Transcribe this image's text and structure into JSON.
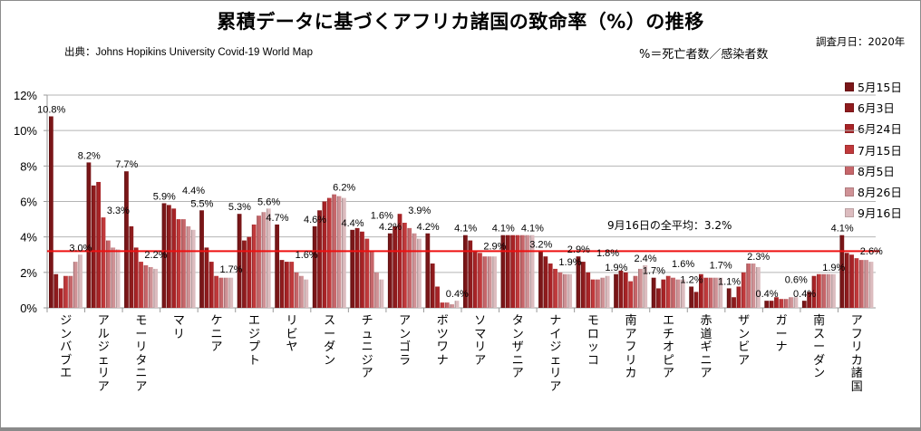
{
  "chart_data": {
    "type": "bar",
    "title": "累積データに基づくアフリカ諸国の致命率（%）の推移",
    "source": "出典：Johns Hopikins University   Covid-19 World Map",
    "formula_note": "%＝死亡者数／感染者数",
    "survey_note": "調査月日：2020年",
    "xlabel": "",
    "ylabel": "",
    "ylim": [
      0,
      12
    ],
    "y_ticks": [
      "0%",
      "2%",
      "4%",
      "6%",
      "8%",
      "10%",
      "12%"
    ],
    "y_tick_values": [
      0,
      2,
      4,
      6,
      8,
      10,
      12
    ],
    "grid": true,
    "legend_position": "right",
    "categories": [
      "ジンバブエ",
      "アルジェリア",
      "モーリタニア",
      "マリ",
      "ケニア",
      "エジプト",
      "リビヤ",
      "スーダン",
      "チュニジア",
      "アンゴラ",
      "ボツワナ",
      "ソマリア",
      "タンザニア",
      "ナイジェリア",
      "モロッコ",
      "南アフリカ",
      "エチオピア",
      "赤道ギニア",
      "ザンビア",
      "ガーナ",
      "南スーダン",
      "アフリカ諸国"
    ],
    "series": [
      {
        "name": "5月15日",
        "color": "#7a1618",
        "values": [
          10.8,
          8.2,
          7.7,
          5.9,
          5.5,
          5.3,
          4.7,
          4.6,
          4.4,
          4.2,
          4.2,
          4.1,
          4.1,
          3.2,
          2.9,
          1.9,
          1.7,
          1.2,
          1.1,
          0.4,
          0.4,
          4.1
        ]
      },
      {
        "name": "6月3日",
        "color": "#8f1b1d",
        "values": [
          1.9,
          6.9,
          4.6,
          5.8,
          3.4,
          3.8,
          2.7,
          5.5,
          4.5,
          4.6,
          2.5,
          3.8,
          4.1,
          2.9,
          2.6,
          2.1,
          1.1,
          0.9,
          0.6,
          0.4,
          0.9,
          3.1
        ]
      },
      {
        "name": "6月24日",
        "color": "#a82326",
        "values": [
          1.1,
          7.1,
          3.4,
          5.6,
          2.6,
          4.0,
          2.6,
          6.0,
          4.3,
          5.3,
          1.2,
          3.2,
          4.1,
          2.5,
          2.0,
          2.0,
          1.6,
          1.9,
          1.2,
          0.6,
          1.8,
          3.0
        ]
      },
      {
        "name": "7月15日",
        "color": "#c0393b",
        "values": [
          1.8,
          5.1,
          2.6,
          5.0,
          1.8,
          4.7,
          2.6,
          6.2,
          3.9,
          4.8,
          0.3,
          3.1,
          4.1,
          2.2,
          1.6,
          1.5,
          1.8,
          1.7,
          2.0,
          0.5,
          1.9,
          2.8
        ]
      },
      {
        "name": "8月5日",
        "color": "#c6666a",
        "values": [
          1.8,
          3.8,
          2.4,
          5.0,
          1.7,
          5.2,
          2.0,
          6.4,
          3.2,
          4.5,
          0.3,
          2.9,
          4.1,
          2.0,
          1.6,
          1.8,
          1.7,
          1.7,
          2.5,
          0.5,
          1.9,
          2.7
        ]
      },
      {
        "name": "8月26日",
        "color": "#cf9296",
        "values": [
          2.6,
          3.4,
          2.3,
          4.6,
          1.7,
          5.4,
          1.8,
          6.3,
          2.0,
          4.2,
          0.2,
          2.9,
          4.1,
          1.9,
          1.7,
          2.2,
          1.6,
          1.7,
          2.5,
          0.6,
          1.9,
          2.7
        ]
      },
      {
        "name": "9月16日",
        "color": "#dcbcbf",
        "values": [
          3.0,
          3.3,
          2.2,
          4.4,
          1.7,
          5.6,
          1.6,
          6.2,
          1.6,
          3.9,
          0.4,
          2.9,
          4.1,
          1.9,
          1.8,
          2.4,
          1.6,
          1.7,
          2.3,
          0.6,
          1.9,
          2.6
        ]
      }
    ],
    "data_labels": [
      {
        "category": "ジンバブエ",
        "labels": [
          "10.8%",
          "3.0%"
        ]
      },
      {
        "category": "アルジェリア",
        "labels": [
          "8.2%",
          "3.3%"
        ]
      },
      {
        "category": "モーリタニア",
        "labels": [
          "7.7%",
          "2.2%"
        ]
      },
      {
        "category": "マリ",
        "labels": [
          "5.9%",
          "4.4%"
        ]
      },
      {
        "category": "ケニア",
        "labels": [
          "5.5%",
          "1.7%"
        ]
      },
      {
        "category": "エジプト",
        "labels": [
          "5.3%",
          "5.6%"
        ]
      },
      {
        "category": "リビヤ",
        "labels": [
          "4.7%",
          "1.6%"
        ]
      },
      {
        "category": "スーダン",
        "labels": [
          "4.6%",
          "6.2%"
        ]
      },
      {
        "category": "チュニジア",
        "labels": [
          "4.4%",
          "1.6%"
        ]
      },
      {
        "category": "アンゴラ",
        "labels": [
          "4.2%",
          "3.9%"
        ]
      },
      {
        "category": "ボツワナ",
        "labels": [
          "4.2%",
          "0.4%"
        ]
      },
      {
        "category": "ソマリア",
        "labels": [
          "4.1%",
          "2.9%"
        ]
      },
      {
        "category": "タンザニア",
        "labels": [
          "4.1%",
          "4.1%"
        ]
      },
      {
        "category": "ナイジェリア",
        "labels": [
          "3.2%",
          "1.9%"
        ]
      },
      {
        "category": "モロッコ",
        "labels": [
          "2.9%",
          "1.8%"
        ]
      },
      {
        "category": "南アフリカ",
        "labels": [
          "1.9%",
          "2.4%"
        ]
      },
      {
        "category": "エチオピア",
        "labels": [
          "1.7%",
          "1.6%"
        ]
      },
      {
        "category": "赤道ギニア",
        "labels": [
          "1.2%",
          "1.7%"
        ]
      },
      {
        "category": "ザンビア",
        "labels": [
          "1.1%",
          "2.3%"
        ]
      },
      {
        "category": "ガーナ",
        "labels": [
          "0.4%",
          "0.6%"
        ]
      },
      {
        "category": "南スーダン",
        "labels": [
          "0.4%",
          "1.9%"
        ]
      },
      {
        "category": "アフリカ諸国",
        "labels": [
          "4.1%",
          "2.6%"
        ]
      }
    ],
    "reference_line": {
      "value": 3.2,
      "label": "9月16日の全平均：3.2%",
      "color": "#ee1111"
    }
  }
}
